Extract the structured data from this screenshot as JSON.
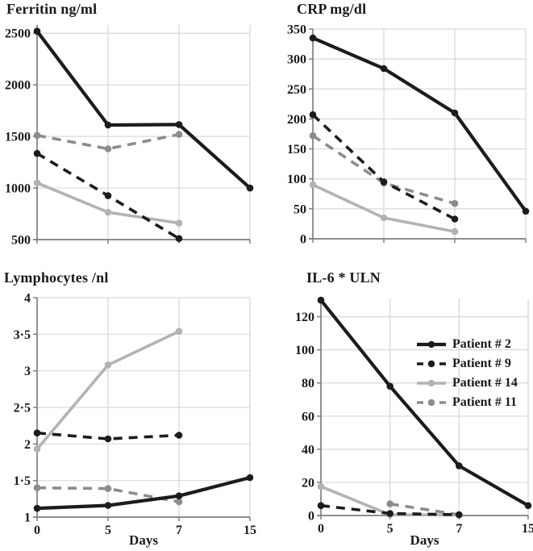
{
  "figure": {
    "background": "#ffffff",
    "text_color": "#1a1a1a",
    "gridline_color": "#d9d9d9",
    "axis_color": "#7f7f7f"
  },
  "patients": [
    {
      "id": "p2",
      "label": "Patient # 2",
      "color": "#1c1c1c",
      "line_style": "solid"
    },
    {
      "id": "p9",
      "label": "Patient # 9",
      "color": "#1c1c1c",
      "line_style": "dashed"
    },
    {
      "id": "p14",
      "label": "Patient # 14",
      "color": "#b3b3b3",
      "line_style": "solid"
    },
    {
      "id": "p11",
      "label": "Patient # 11",
      "color": "#8c8c8c",
      "line_style": "dashed"
    }
  ],
  "legend": {
    "entries": [
      "Patient # 2",
      "Patient # 9",
      "Patient # 14",
      "Patient # 11"
    ],
    "position": "inside-il6-chart-upper-right"
  },
  "chart_data": [
    {
      "type": "line",
      "title": "Ferritin ng/ml",
      "xlabel": "",
      "x_categories": [
        "0",
        "5",
        "7",
        "15"
      ],
      "x_tick_labels_shown": false,
      "x_spacing": "categorical-equal",
      "ylim": [
        500,
        2580
      ],
      "yticks": [
        500,
        1000,
        1500,
        2000,
        2500
      ],
      "ytick_labels": [
        "500",
        "1000",
        "1500",
        "2000",
        "2500"
      ],
      "grid": true,
      "series": [
        {
          "patient": "p14",
          "name": "Patient # 14",
          "values": [
            1050,
            765,
            660,
            null
          ]
        },
        {
          "patient": "p11",
          "name": "Patient # 11",
          "values": [
            1510,
            1380,
            1520,
            null
          ]
        },
        {
          "patient": "p9",
          "name": "Patient # 9",
          "values": [
            1335,
            925,
            510,
            null
          ]
        },
        {
          "patient": "p2",
          "name": "Patient # 2",
          "values": [
            2520,
            1610,
            1615,
            1000
          ]
        }
      ]
    },
    {
      "type": "line",
      "title": "CRP mg/dl",
      "xlabel": "",
      "x_categories": [
        "0",
        "5",
        "7",
        "15"
      ],
      "x_tick_labels_shown": false,
      "x_spacing": "categorical-equal",
      "ylim": [
        0,
        350
      ],
      "yticks": [
        0,
        50,
        100,
        150,
        200,
        250,
        300,
        350
      ],
      "ytick_labels": [
        "0",
        "50",
        "100",
        "150",
        "200",
        "250",
        "300",
        "350"
      ],
      "grid": true,
      "series": [
        {
          "patient": "p14",
          "name": "Patient # 14",
          "values": [
            90,
            35,
            12,
            null
          ]
        },
        {
          "patient": "p11",
          "name": "Patient # 11",
          "values": [
            172,
            93,
            59,
            null
          ]
        },
        {
          "patient": "p9",
          "name": "Patient # 9",
          "values": [
            207,
            95,
            33,
            null
          ]
        },
        {
          "patient": "p2",
          "name": "Patient # 2",
          "values": [
            335,
            284,
            210,
            46
          ]
        }
      ]
    },
    {
      "type": "line",
      "title": "Lymphocytes /nl",
      "xlabel": "Days",
      "x_categories": [
        "0",
        "5",
        "7",
        "15"
      ],
      "x_tick_labels_shown": true,
      "x_spacing": "categorical-equal",
      "ylim": [
        1,
        4
      ],
      "yticks": [
        1,
        1.5,
        2,
        2.5,
        3,
        3.5,
        4
      ],
      "ytick_labels": [
        "1",
        "1·5",
        "2",
        "2·5",
        "3",
        "3·5",
        "4"
      ],
      "grid": true,
      "series": [
        {
          "patient": "p14",
          "name": "Patient # 14",
          "values": [
            1.93,
            3.08,
            3.54,
            null
          ]
        },
        {
          "patient": "p11",
          "name": "Patient # 11",
          "values": [
            1.4,
            1.39,
            1.21,
            null
          ]
        },
        {
          "patient": "p9",
          "name": "Patient # 9",
          "values": [
            2.15,
            2.07,
            2.12,
            null
          ]
        },
        {
          "patient": "p2",
          "name": "Patient # 2",
          "values": [
            1.12,
            1.16,
            1.29,
            1.54
          ]
        }
      ]
    },
    {
      "type": "line",
      "title": "IL-6 * ULN",
      "xlabel": "Days",
      "x_categories": [
        "0",
        "5",
        "7",
        "15"
      ],
      "x_tick_labels_shown": true,
      "x_spacing": "categorical-equal",
      "ylim": [
        0,
        131
      ],
      "yticks": [
        0,
        20,
        40,
        60,
        80,
        100,
        120
      ],
      "ytick_labels": [
        "0",
        "20",
        "40",
        "60",
        "80",
        "100",
        "120"
      ],
      "grid": true,
      "series": [
        {
          "patient": "p14",
          "name": "Patient # 14",
          "values": [
            17.5,
            0.5,
            0.3,
            null
          ]
        },
        {
          "patient": "p11",
          "name": "Patient # 11",
          "values": [
            null,
            7,
            0.5,
            null
          ]
        },
        {
          "patient": "p9",
          "name": "Patient # 9",
          "values": [
            6,
            1.2,
            0.5,
            null
          ]
        },
        {
          "patient": "p2",
          "name": "Patient # 2",
          "values": [
            130,
            78,
            30,
            6
          ]
        }
      ]
    }
  ]
}
